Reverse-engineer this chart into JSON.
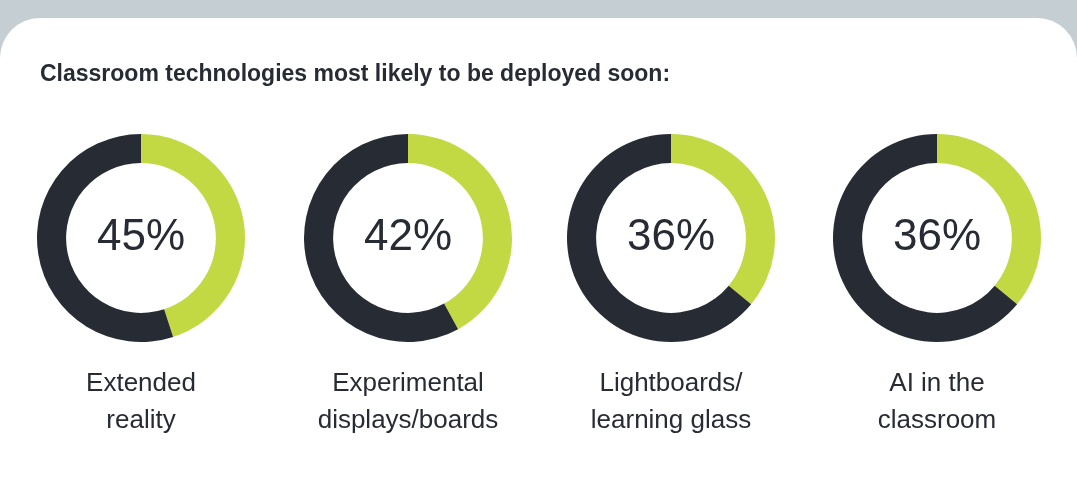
{
  "chart_data": [
    {
      "type": "donut",
      "title": "Classroom technologies most likely to be deployed soon:",
      "xlabel": "Extended\nreality",
      "categories": [
        null,
        null
      ],
      "values": [
        45,
        55
      ],
      "colors": [
        "#c3d944",
        "#272b34"
      ],
      "value_labels": [
        "45%",
        null
      ]
    },
    {
      "type": "donut",
      "xlabel": "Experimental\ndisplays/boards",
      "categories": [
        null,
        null
      ],
      "values": [
        42,
        58
      ],
      "colors": [
        "#c3d944",
        "#272b34"
      ],
      "value_labels": [
        "42%",
        null
      ]
    },
    {
      "type": "donut",
      "xlabel": "Lightboards/\nlearning glass",
      "categories": [
        null,
        null
      ],
      "values": [
        36,
        64
      ],
      "colors": [
        "#c3d944",
        "#272b34"
      ],
      "value_labels": [
        "36%",
        null
      ]
    },
    {
      "type": "donut",
      "xlabel": "AI in the\nclassroom",
      "categories": [
        null,
        null
      ],
      "values": [
        36,
        64
      ],
      "colors": [
        "#c3d944",
        "#272b34"
      ],
      "value_labels": [
        "36%",
        null
      ]
    }
  ]
}
